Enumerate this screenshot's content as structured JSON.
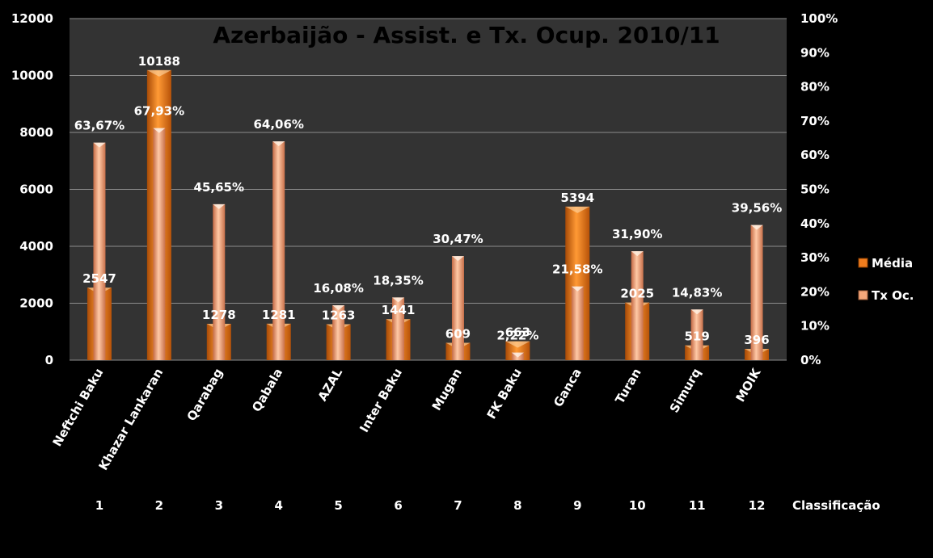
{
  "chart_data": {
    "type": "bar",
    "title": "Azerbaijão - Assist. e Tx. Ocup. 2010/11",
    "categories": [
      "Neftchi Baku",
      "Khazar Lankaran",
      "Qarabag",
      "Qabala",
      "AZAL",
      "Inter Baku",
      "Mugan",
      "FK Baku",
      "Ganca",
      "Turan",
      "Simurq",
      "MOIK"
    ],
    "ranks": [
      "1",
      "2",
      "3",
      "4",
      "5",
      "6",
      "7",
      "8",
      "9",
      "10",
      "11",
      "12"
    ],
    "rank_axis_label": "Classificação",
    "series": [
      {
        "name": "Média",
        "axis": "left",
        "values": [
          2547,
          10188,
          1278,
          1281,
          1263,
          1441,
          609,
          663,
          5394,
          2025,
          519,
          396
        ],
        "labels": [
          "2547",
          "10188",
          "1278",
          "1281",
          "1263",
          "1441",
          "609",
          "663",
          "5394",
          "2025",
          "519",
          "396"
        ],
        "color": "#F07D1E"
      },
      {
        "name": "Tx Oc.",
        "axis": "right",
        "values": [
          63.67,
          67.93,
          45.65,
          64.06,
          16.08,
          18.35,
          30.47,
          2.22,
          21.58,
          31.9,
          14.83,
          39.56
        ],
        "labels": [
          "63,67%",
          "67,93%",
          "45,65%",
          "64,06%",
          "16,08%",
          "18,35%",
          "30,47%",
          "2,22%",
          "21,58%",
          "31,90%",
          "14,83%",
          "39,56%"
        ],
        "color": "#F4A77A"
      }
    ],
    "y_left": {
      "min": 0,
      "max": 12000,
      "ticks": [
        "0",
        "2000",
        "4000",
        "6000",
        "8000",
        "10000",
        "12000"
      ]
    },
    "y_right": {
      "min": 0,
      "max": 100,
      "ticks": [
        "0%",
        "10%",
        "20%",
        "30%",
        "40%",
        "50%",
        "60%",
        "70%",
        "80%",
        "90%",
        "100%"
      ]
    },
    "grid": true,
    "legend_position": "right"
  }
}
